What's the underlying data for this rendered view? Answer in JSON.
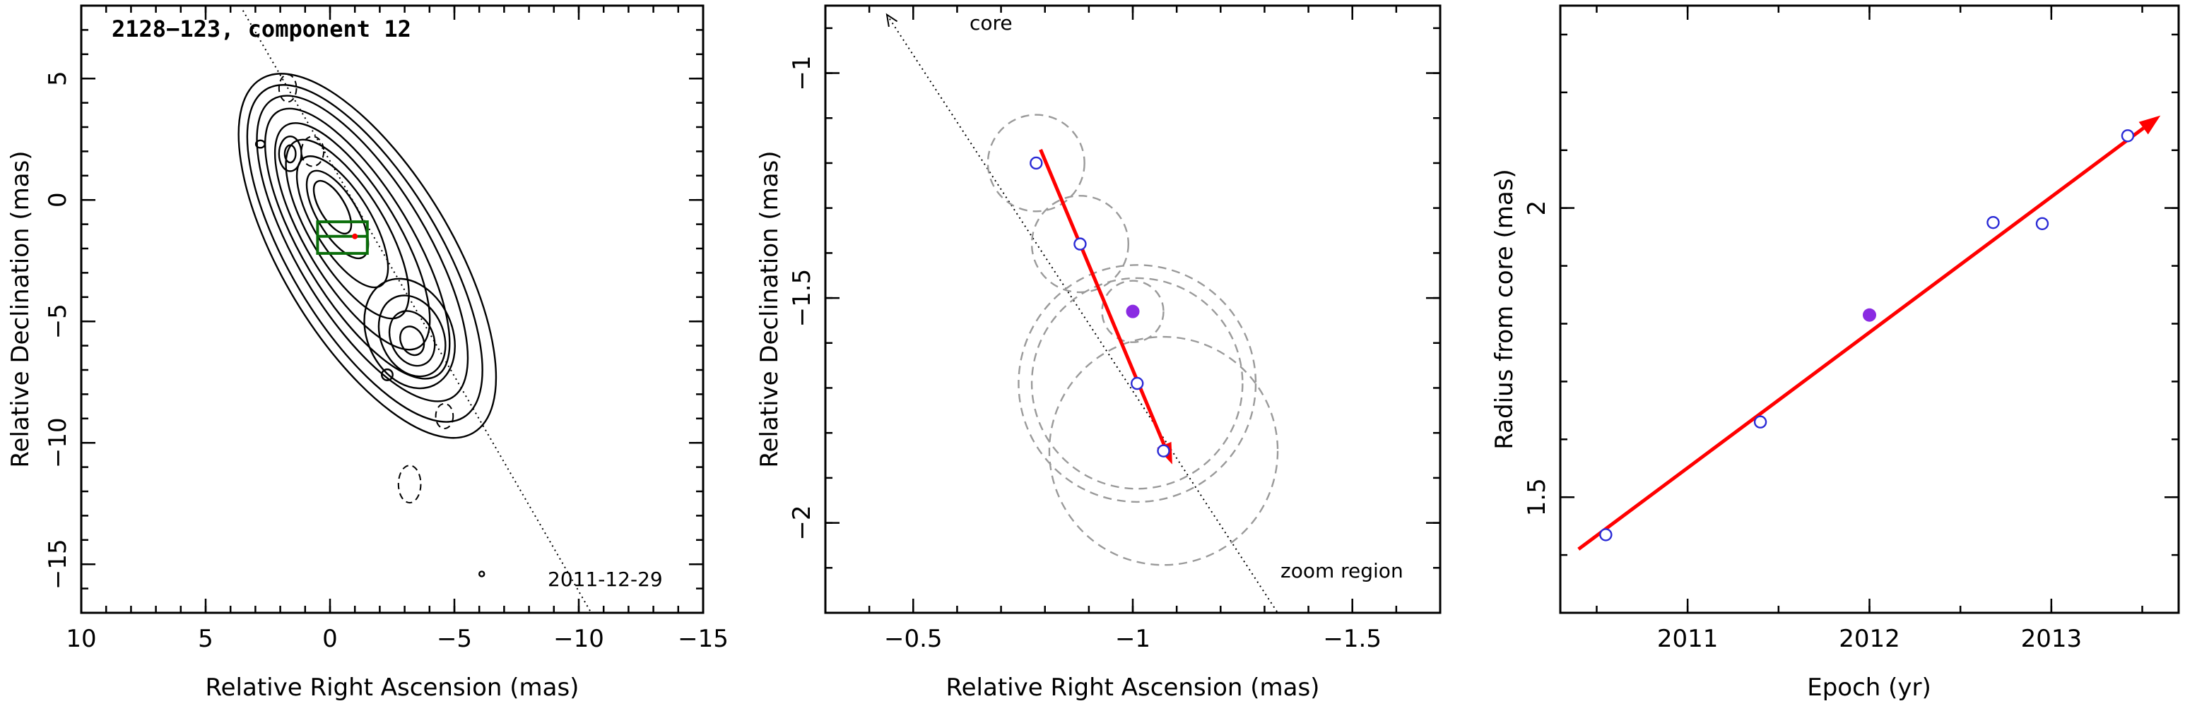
{
  "chart_data": [
    {
      "type": "contour",
      "title": "2128−123, component 12",
      "xlabel": "Relative Right Ascension (mas)",
      "ylabel": "Relative Declination (mas)",
      "xlim": [
        10,
        -15
      ],
      "ylim": [
        -17,
        8
      ],
      "xticks": [
        10,
        5,
        0,
        -5,
        -10,
        -15
      ],
      "xtick_labels": [
        "10",
        "5",
        "0",
        "−5",
        "−10",
        "−15"
      ],
      "yticks": [
        -15,
        -10,
        -5,
        0,
        5
      ],
      "ytick_labels": [
        "−15",
        "−10",
        "−5",
        "0",
        "5"
      ],
      "epoch_label": "2011-12-29",
      "core_direction_line": {
        "x": [
          3.5,
          -10.5
        ],
        "y": [
          7.8,
          -17
        ]
      },
      "zoom_box": {
        "x": [
          0.5,
          -1.5
        ],
        "y": [
          -0.9,
          -2.2
        ]
      },
      "component_position": {
        "x": -1.0,
        "y": -1.5
      }
    },
    {
      "type": "scatter",
      "xlabel": "Relative Right Ascension (mas)",
      "ylabel": "Relative Declination (mas)",
      "xlim": [
        -0.3,
        -1.7
      ],
      "ylim": [
        -2.2,
        -0.85
      ],
      "xticks": [
        -0.5,
        -1,
        -1.5
      ],
      "xtick_labels": [
        "−0.5",
        "−1",
        "−1.5"
      ],
      "yticks": [
        -2,
        -1.5,
        -1
      ],
      "ytick_labels": [
        "−2",
        "−1.5",
        "−1"
      ],
      "annotations": [
        "core",
        "zoom region"
      ],
      "points": [
        {
          "x": -0.78,
          "y": -1.2,
          "r": 0.11
        },
        {
          "x": -0.88,
          "y": -1.38,
          "r": 0.11
        },
        {
          "x": -1.01,
          "y": -1.69,
          "r": 0.24
        },
        {
          "x": -1.07,
          "y": -1.84,
          "r": 0.26
        }
      ],
      "highlighted_point": {
        "x": -1.0,
        "y": -1.53,
        "r": 0.07
      },
      "extra_circles": [
        {
          "x": -1.01,
          "y": -1.69,
          "r": 0.27
        }
      ],
      "fit_arrow": {
        "x": [
          -0.79,
          -1.09
        ],
        "y": [
          -1.17,
          -1.87
        ]
      },
      "core_direction_line": {
        "x": [
          -0.44,
          -1.33
        ],
        "y": [
          -0.87,
          -2.2
        ]
      }
    },
    {
      "type": "scatter",
      "xlabel": "Epoch (yr)",
      "ylabel": "Radius from core (mas)",
      "xlim": [
        2010.3,
        2013.7
      ],
      "ylim": [
        1.3,
        2.35
      ],
      "xticks": [
        2011,
        2012,
        2013
      ],
      "xtick_labels": [
        "2011",
        "2012",
        "2013"
      ],
      "yticks": [
        1.5,
        2
      ],
      "ytick_labels": [
        "1.5",
        "2"
      ],
      "points": [
        {
          "x": 2010.55,
          "y": 1.435
        },
        {
          "x": 2011.4,
          "y": 1.63
        },
        {
          "x": 2012.68,
          "y": 1.975
        },
        {
          "x": 2012.95,
          "y": 1.973
        },
        {
          "x": 2013.42,
          "y": 2.125
        }
      ],
      "highlighted_point": {
        "x": 2012.0,
        "y": 1.815
      },
      "fit_arrow": {
        "x": [
          2010.4,
          2013.6
        ],
        "y": [
          1.41,
          2.16
        ]
      }
    }
  ]
}
